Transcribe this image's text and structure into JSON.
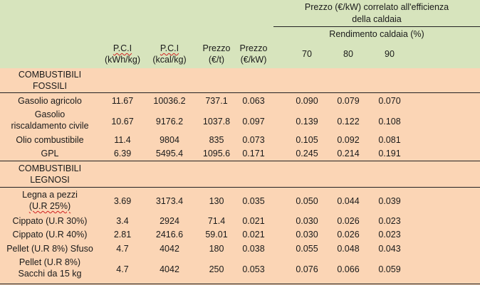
{
  "header": {
    "group_title_line1": "Prezzo (€/kW) correlato all'efficienza",
    "group_title_line2": "della caldaia",
    "rendimento": "Rendimento caldaia (%)",
    "pci_kwh_1": "P.C.I",
    "pci_kwh_2": "(kWh/kg)",
    "pci_kcal_1": "P.C.I",
    "pci_kcal_2": "(kcal/kg)",
    "prezzo_t_1": "Prezzo",
    "prezzo_t_2": "(€/t)",
    "prezzo_kw_1": "Prezzo",
    "prezzo_kw_2": "(€/kW)",
    "eff70": "70",
    "eff80": "80",
    "eff90": "90"
  },
  "sections": {
    "fossili_1": "COMBUSTIBILI",
    "fossili_2": "FOSSILI",
    "legnosi_1": "COMBUSTIBILI",
    "legnosi_2": "LEGNOSI"
  },
  "rows": [
    {
      "name1": "Gasolio agricolo",
      "name2": "",
      "pci_kwh": "11.67",
      "pci_kcal": "10036.2",
      "prezzo_t": "737.1",
      "prezzo_kw": "0.063",
      "e70": "0.090",
      "e80": "0.079",
      "e90": "0.070"
    },
    {
      "name1": "Gasolio",
      "name2": "riscaldamento civile",
      "pci_kwh": "10.67",
      "pci_kcal": "9176.2",
      "prezzo_t": "1037.8",
      "prezzo_kw": "0.097",
      "e70": "0.139",
      "e80": "0.122",
      "e90": "0.108"
    },
    {
      "name1": "Olio combustibile",
      "name2": "",
      "pci_kwh": "11.4",
      "pci_kcal": "9804",
      "prezzo_t": "835",
      "prezzo_kw": "0.073",
      "e70": "0.105",
      "e80": "0.092",
      "e90": "0.081"
    },
    {
      "name1": "GPL",
      "name2": "",
      "pci_kwh": "6.39",
      "pci_kcal": "5495.4",
      "prezzo_t": "1095.6",
      "prezzo_kw": "0.171",
      "e70": "0.245",
      "e80": "0.214",
      "e90": "0.191"
    },
    {
      "name1": "Legna a pezzi",
      "name2": "(U.R 25%)",
      "pci_kwh": "3.69",
      "pci_kcal": "3173.4",
      "prezzo_t": "130",
      "prezzo_kw": "0.035",
      "e70": "0.050",
      "e80": "0.044",
      "e90": "0.039"
    },
    {
      "name1": "Cippato (U.R 30%)",
      "name2": "",
      "pci_kwh": "3.4",
      "pci_kcal": "2924",
      "prezzo_t": "71.4",
      "prezzo_kw": "0.021",
      "e70": "0.030",
      "e80": "0.026",
      "e90": "0.023"
    },
    {
      "name1": "Cippato (U.R 40%)",
      "name2": "",
      "pci_kwh": "2.81",
      "pci_kcal": "2416.6",
      "prezzo_t": "59.01",
      "prezzo_kw": "0.021",
      "e70": "0.030",
      "e80": "0.026",
      "e90": "0.023"
    },
    {
      "name1": "Pellet (U.R 8%) Sfuso",
      "name2": "",
      "pci_kwh": "4.7",
      "pci_kcal": "4042",
      "prezzo_t": "180",
      "prezzo_kw": "0.038",
      "e70": "0.055",
      "e80": "0.048",
      "e90": "0.043"
    },
    {
      "name1": "Pellet (U.R 8%)",
      "name2": "Sacchi da 15 kg",
      "pci_kwh": "4.7",
      "pci_kcal": "4042",
      "prezzo_t": "250",
      "prezzo_kw": "0.053",
      "e70": "0.076",
      "e80": "0.066",
      "e90": "0.059"
    }
  ]
}
